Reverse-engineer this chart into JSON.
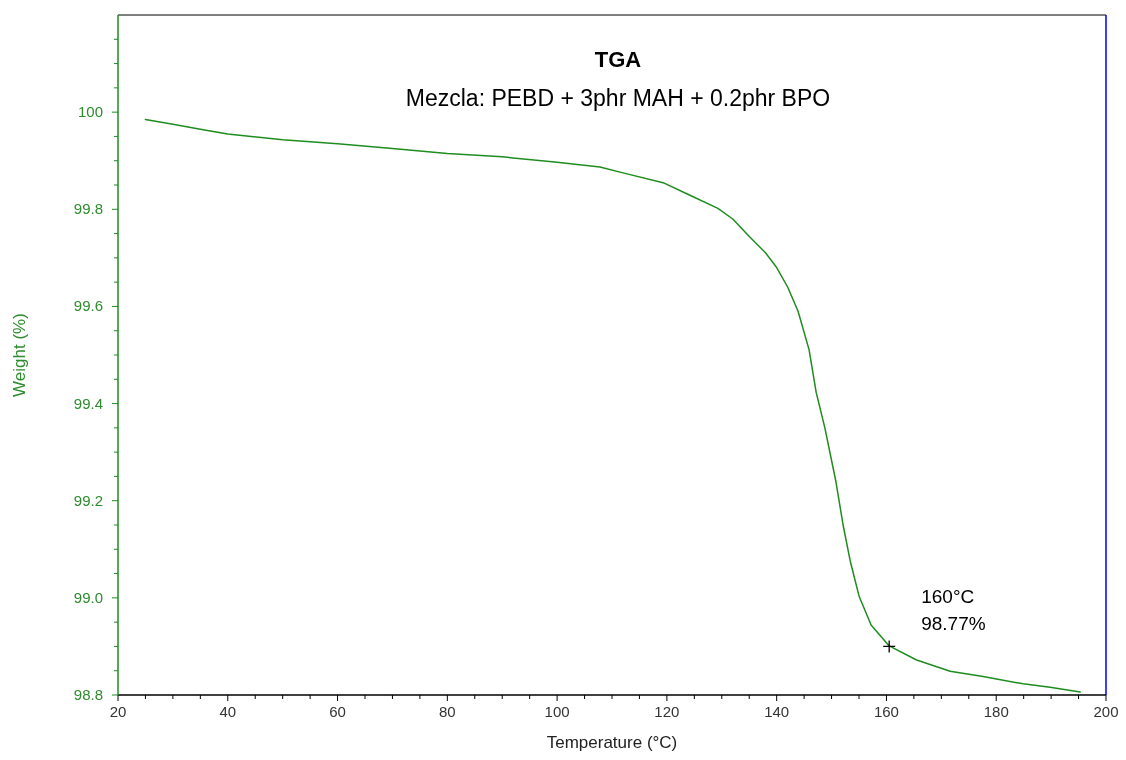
{
  "chart_data": {
    "type": "line",
    "title": "TGA",
    "subtitle": "Mezcla: PEBD + 3phr MAH + 0.2phr BPO",
    "xlabel": "Temperature (°C)",
    "ylabel": "Weight (%)",
    "xlim": [
      20,
      200
    ],
    "xticks": [
      20,
      {
        "value": 25,
        "label": null
      },
      {
        "value": 30,
        "label": null
      },
      {
        "value": 35,
        "label": null
      },
      40,
      {
        "value": 45,
        "label": null
      },
      {
        "value": 50,
        "label": null
      },
      {
        "value": 55,
        "label": null
      },
      60,
      {
        "value": 65,
        "label": null
      },
      {
        "value": 70,
        "label": null
      },
      {
        "value": 75,
        "label": null
      },
      80,
      {
        "value": 85,
        "label": null
      },
      {
        "value": 90,
        "label": null
      },
      {
        "value": 95,
        "label": null
      },
      100,
      {
        "value": 105,
        "label": null
      },
      {
        "value": 110,
        "label": null
      },
      {
        "value": 115,
        "label": null
      },
      120,
      {
        "value": 125,
        "label": null
      },
      {
        "value": 130,
        "label": null
      },
      {
        "value": 135,
        "label": null
      },
      140,
      {
        "value": 145,
        "label": null
      },
      {
        "value": 150,
        "label": null
      },
      {
        "value": 155,
        "label": null
      },
      160,
      {
        "value": 165,
        "label": null
      },
      {
        "value": 170,
        "label": null
      },
      {
        "value": 175,
        "label": null
      },
      180,
      {
        "value": 185,
        "label": null
      },
      {
        "value": 190,
        "label": null
      },
      {
        "value": 195,
        "label": null
      },
      200
    ],
    "ylim": [
      98.8,
      100.2
    ],
    "yticks": [
      {
        "value": 98.8,
        "label": "98.8"
      },
      {
        "value": 98.85,
        "label": null
      },
      {
        "value": 98.9,
        "label": null
      },
      {
        "value": 98.95,
        "label": null
      },
      {
        "value": 99,
        "label": "99.0"
      },
      {
        "value": 99.05,
        "label": null
      },
      {
        "value": 99.1,
        "label": null
      },
      {
        "value": 99.15,
        "label": null
      },
      {
        "value": 99.2,
        "label": "99.2"
      },
      {
        "value": 99.25,
        "label": null
      },
      {
        "value": 99.3,
        "label": null
      },
      {
        "value": 99.35,
        "label": null
      },
      {
        "value": 99.4,
        "label": "99.4"
      },
      {
        "value": 99.45,
        "label": null
      },
      {
        "value": 99.5,
        "label": null
      },
      {
        "value": 99.55,
        "label": null
      },
      {
        "value": 99.6,
        "label": "99.6"
      },
      {
        "value": 99.65,
        "label": null
      },
      {
        "value": 99.7,
        "label": null
      },
      {
        "value": 99.75,
        "label": null
      },
      {
        "value": 99.8,
        "label": "99.8"
      },
      {
        "value": 99.85,
        "label": null
      },
      {
        "value": 99.9,
        "label": null
      },
      {
        "value": 99.95,
        "label": null
      },
      100,
      {
        "value": 100.05,
        "label": null
      },
      {
        "value": 100.1,
        "label": null
      },
      {
        "value": 100.15,
        "label": null
      }
    ],
    "grid": false,
    "marker": "none",
    "line_style": "solid",
    "series": [
      {
        "color": "#1e8c1e",
        "x": [
          25,
          30,
          35,
          40,
          50,
          60,
          70,
          80,
          90,
          100,
          107.8,
          112,
          119.5,
          124,
          129.3,
          132,
          135.1,
          138,
          140,
          142,
          143.9,
          145.9,
          147.2,
          148.8,
          150.8,
          152.1,
          153.4,
          155,
          157.2,
          160.5,
          165.5,
          171.6,
          177.6,
          184.9,
          189.8,
          195.3
        ],
        "values": [
          99.985,
          99.975,
          99.965,
          99.955,
          99.943,
          99.935,
          99.925,
          99.915,
          99.908,
          99.897,
          99.887,
          99.875,
          99.854,
          99.83,
          99.802,
          99.78,
          99.743,
          99.71,
          99.68,
          99.64,
          99.59,
          99.511,
          99.423,
          99.349,
          99.239,
          99.15,
          99.076,
          99.004,
          98.944,
          98.901,
          98.872,
          98.849,
          98.838,
          98.823,
          98.816,
          98.806
        ]
      },
      {
        "type": "scatter",
        "marker": "cross",
        "color": "#000000",
        "x": [
          160.5
        ],
        "values": [
          98.9
        ]
      }
    ],
    "annotations": [
      {
        "text": "160°C\n98.77%",
        "x": 160.5,
        "y": 98.9
      }
    ]
  }
}
